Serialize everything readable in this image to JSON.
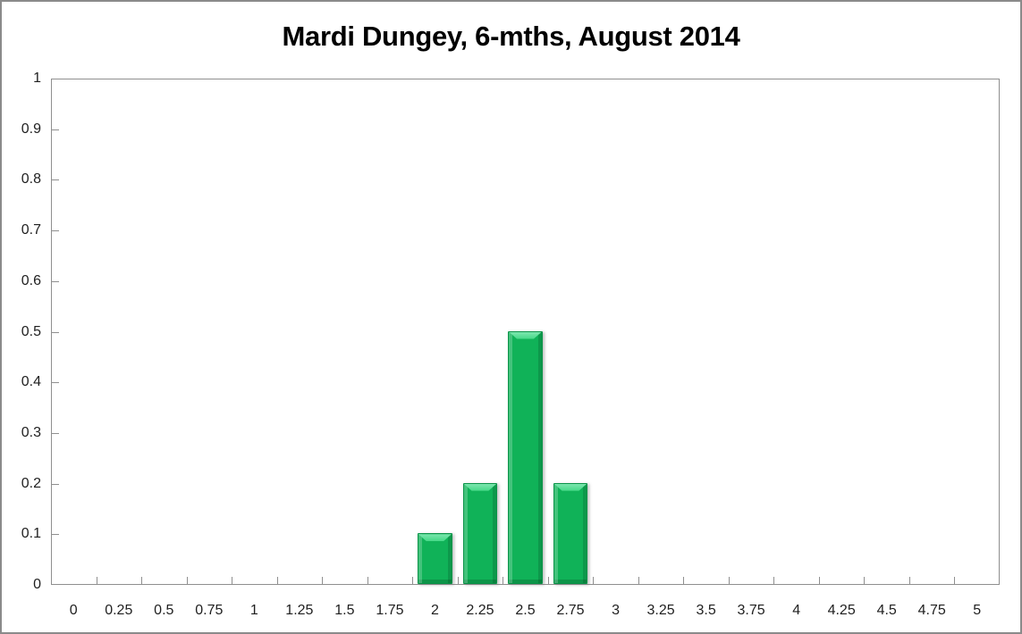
{
  "chart_data": {
    "type": "bar",
    "title": "Mardi Dungey, 6-mths, August 2014",
    "categories": [
      "0",
      "0.25",
      "0.5",
      "0.75",
      "1",
      "1.25",
      "1.5",
      "1.75",
      "2",
      "2.25",
      "2.5",
      "2.75",
      "3",
      "3.25",
      "3.5",
      "3.75",
      "4",
      "4.25",
      "4.5",
      "4.75",
      "5"
    ],
    "values": [
      0,
      0,
      0,
      0,
      0,
      0,
      0,
      0,
      0.1,
      0.2,
      0.5,
      0.2,
      0,
      0,
      0,
      0,
      0,
      0,
      0,
      0,
      0
    ],
    "xlabel": "",
    "ylabel": "",
    "ylim": [
      0,
      1
    ],
    "y_tick_step": 0.1,
    "y_tick_labels": [
      "0",
      "0.1",
      "0.2",
      "0.3",
      "0.4",
      "0.5",
      "0.6",
      "0.7",
      "0.8",
      "0.9",
      "1"
    ],
    "grid": false,
    "legend": "none",
    "bar_width_fraction": 0.77,
    "colors": {
      "bar_body": "#10b258",
      "bar_bevel_light": "#45d887",
      "bar_bevel_lighter": "#7ce6ae",
      "bar_edge_dark": "#0a9348",
      "axis_line": "#8f8f8f",
      "tick_label": "#1f1f1f",
      "title": "#000000",
      "window_border": "#8a8a8a",
      "background": "#ffffff"
    }
  }
}
